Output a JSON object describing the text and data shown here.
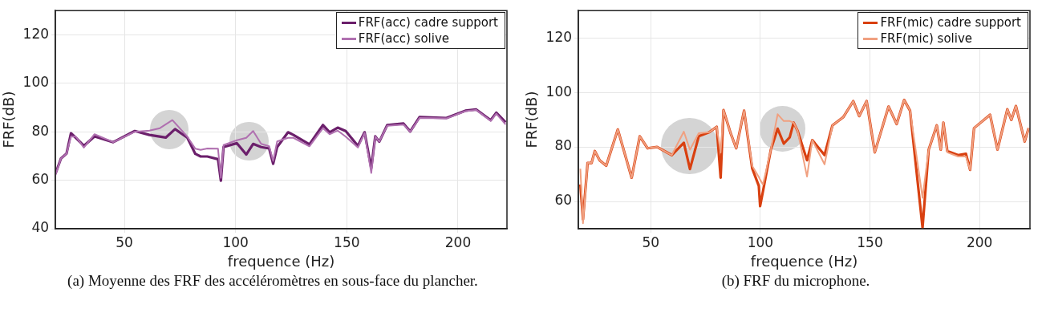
{
  "chart_data": [
    {
      "type": "line",
      "xlabel": "frequence (Hz)",
      "ylabel": "FRF(dB)",
      "xlim": [
        19,
        222
      ],
      "xticks": [
        50,
        100,
        150,
        200
      ],
      "ylim": [
        40,
        130
      ],
      "yticks": [
        40,
        60,
        80,
        100,
        120
      ],
      "grid": true,
      "legend": "top right",
      "marker": "none",
      "line_style": "solid",
      "annotations": [
        "(a) Moyenne des FRF des accéléromètres en sous-face du plancher."
      ],
      "series": [
        {
          "name": "FRF(acc) cadre support",
          "color": "#6b1f6b",
          "x": [
            19,
            21.5,
            24,
            26,
            28.2,
            31.8,
            36.6,
            45,
            54.7,
            61.3,
            68.6,
            72.8,
            78.3,
            81.9,
            84.3,
            87.3,
            92.1,
            93.4,
            94.6,
            100.6,
            104.8,
            107.9,
            111.5,
            115.1,
            116.9,
            118.7,
            123.6,
            126,
            133.2,
            139.3,
            142.3,
            145.9,
            149.5,
            155,
            158,
            161,
            162.8,
            164.6,
            168.2,
            175.5,
            178.5,
            182.7,
            194.8,
            203.3,
            208.2,
            214.7,
            217.2,
            221.4
          ],
          "values": [
            62.6,
            69,
            71,
            79.4,
            77.5,
            74.2,
            78.1,
            75.7,
            80.3,
            78.7,
            77.6,
            81.1,
            77.6,
            70.9,
            69.8,
            69.8,
            68.7,
            59.8,
            73.7,
            75.3,
            70.6,
            75,
            73.7,
            73.1,
            66.8,
            73.7,
            79.8,
            78.7,
            74.8,
            82.8,
            79.8,
            81.7,
            80.3,
            74.2,
            79.8,
            65,
            78.1,
            75.9,
            82.8,
            83.4,
            80.1,
            86.1,
            85.7,
            88.7,
            89.2,
            84.8,
            87.9,
            83.9
          ]
        },
        {
          "name": "FRF(acc) solive",
          "color": "#b070b0",
          "x": [
            19,
            21.5,
            24,
            26,
            28.2,
            31.8,
            36.6,
            45,
            54.7,
            61.3,
            66,
            71.6,
            78.3,
            81.9,
            84.3,
            87.3,
            92.1,
            93.4,
            94.6,
            100.6,
            104.8,
            107.9,
            111.5,
            115.1,
            116.9,
            118.7,
            123.6,
            126,
            133.2,
            139.3,
            142.3,
            145.9,
            149.5,
            155,
            158,
            161,
            162.8,
            164.6,
            168.2,
            175.5,
            178.5,
            182.7,
            194.8,
            203.3,
            208.2,
            214.7,
            217.2,
            221.4
          ],
          "values": [
            62,
            69,
            71,
            78,
            78,
            73.5,
            79,
            75.7,
            80,
            80.5,
            81.5,
            84.8,
            78,
            73,
            72.5,
            73.1,
            73,
            61,
            74.5,
            76.5,
            77.5,
            80.3,
            75,
            74,
            68,
            76,
            77.5,
            77.5,
            74,
            81.5,
            79,
            80.5,
            78,
            73.5,
            79.5,
            63,
            78,
            76,
            82.5,
            83,
            80,
            85.7,
            85.5,
            88.5,
            89,
            84.5,
            87.5,
            83
          ]
        }
      ]
    },
    {
      "type": "line",
      "xlabel": "frequence (Hz)",
      "ylabel": "FRF(dB)",
      "xlim": [
        17,
        223
      ],
      "xticks": [
        50,
        100,
        150,
        200
      ],
      "ylim": [
        50,
        130
      ],
      "yticks": [
        60,
        80,
        100,
        120
      ],
      "grid": true,
      "legend": "top right",
      "marker": "none",
      "line_style": "solid",
      "annotations": [
        "(b) FRF du microphone."
      ],
      "series": [
        {
          "name": "FRF(mic) cadre support",
          "color": "#d94010",
          "x": [
            17.9,
            19.1,
            21.2,
            23,
            24.5,
            26.7,
            29.7,
            35,
            41.3,
            45,
            48.6,
            52.9,
            59.6,
            65.1,
            67.9,
            71.9,
            76.7,
            80.1,
            81.9,
            83.2,
            86.5,
            89,
            92.6,
            96.3,
            99.3,
            99.9,
            101.2,
            104.8,
            107.9,
            110.7,
            113.4,
            115.2,
            117,
            121.3,
            123.7,
            129.3,
            132.9,
            137.8,
            142.4,
            145.1,
            148.5,
            152.2,
            158.5,
            162.2,
            165.6,
            168.3,
            174,
            176.8,
            180.5,
            182.3,
            183.5,
            185.3,
            190.2,
            193.8,
            195.7,
            197.5,
            204.8,
            208.2,
            212.7,
            214.5,
            216.6,
            220.6,
            222.4
          ],
          "values": [
            66.2,
            53.4,
            74.1,
            74.1,
            78.5,
            75.1,
            73.1,
            86.4,
            68.7,
            83.9,
            79.5,
            80,
            77,
            81.5,
            71.9,
            83.9,
            85.4,
            87.4,
            68.7,
            93.5,
            84.9,
            79.5,
            93.3,
            72.1,
            65.7,
            58.3,
            63.7,
            79,
            86.7,
            81.2,
            83.5,
            88.9,
            85.9,
            75.1,
            82.5,
            77,
            87.9,
            90.9,
            96.8,
            91.3,
            96.8,
            78,
            94.8,
            88.4,
            97.2,
            93.3,
            50.4,
            79,
            87.9,
            79,
            88.9,
            78.5,
            77,
            77.5,
            71.6,
            86.9,
            91.8,
            79,
            93.8,
            89.9,
            95,
            82,
            86.9
          ]
        },
        {
          "name": "FRF(mic) solive",
          "color": "#f0a080",
          "x": [
            17.9,
            19.1,
            21.2,
            23,
            24.5,
            26.7,
            29.7,
            35,
            41.3,
            45,
            48.6,
            52.9,
            59.6,
            65.1,
            67.9,
            71.9,
            76.7,
            80.1,
            81.9,
            83.2,
            86.5,
            89,
            92.6,
            96.3,
            99.3,
            99.9,
            101.2,
            104.8,
            107.9,
            110.7,
            113.4,
            115.2,
            117,
            121.3,
            123.7,
            129.3,
            132.9,
            137.8,
            142.4,
            145.1,
            148.5,
            152.2,
            158.5,
            162.2,
            165.6,
            168.3,
            174,
            176.8,
            180.5,
            182.3,
            183.5,
            185.3,
            190.2,
            193.8,
            195.7,
            197.5,
            204.8,
            208.2,
            212.7,
            214.5,
            216.6,
            220.6,
            222.4
          ],
          "values": [
            72,
            52,
            74.1,
            74.1,
            78.5,
            75.1,
            73.1,
            86.4,
            68.7,
            83.9,
            79.5,
            80,
            77,
            85.6,
            79,
            85,
            85.4,
            87.4,
            78,
            93.5,
            84.9,
            79.5,
            93.3,
            73,
            69,
            68,
            66.2,
            79,
            92,
            89.5,
            89.5,
            88.9,
            85.9,
            69.1,
            82.5,
            73.6,
            87.9,
            90.9,
            96.8,
            91.3,
            96.8,
            78,
            94.8,
            88.4,
            97.2,
            93.3,
            61.3,
            79,
            87.9,
            79,
            88.9,
            78,
            76.5,
            76.5,
            71.6,
            86.9,
            91.8,
            79,
            93.8,
            89.9,
            95,
            82,
            86.9
          ]
        }
      ]
    }
  ]
}
